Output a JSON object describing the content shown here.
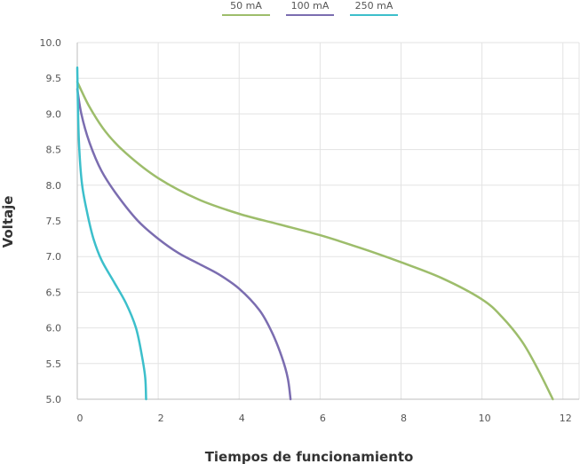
{
  "chart_data": {
    "type": "line",
    "xlabel": "Tiempos de funcionamiento",
    "ylabel": "Voltaje",
    "xlim": [
      0,
      12.4
    ],
    "ylim": [
      5.0,
      10.0
    ],
    "x_ticks": [
      "0",
      "2",
      "4",
      "6",
      "8",
      "10",
      "12"
    ],
    "y_ticks": [
      "5.0",
      "5.5",
      "6.0",
      "6.5",
      "7.0",
      "7.5",
      "8.0",
      "8.5",
      "9.0",
      "9.5",
      "10.0"
    ],
    "grid": true,
    "legend_position": "top-center",
    "series": [
      {
        "name": "50 mA",
        "color": "#9dbd6b",
        "points": [
          [
            0,
            9.45
          ],
          [
            0.3,
            9.1
          ],
          [
            0.7,
            8.75
          ],
          [
            1.2,
            8.45
          ],
          [
            2.0,
            8.1
          ],
          [
            3.0,
            7.8
          ],
          [
            4.0,
            7.6
          ],
          [
            5.0,
            7.45
          ],
          [
            6.0,
            7.3
          ],
          [
            7.0,
            7.12
          ],
          [
            8.0,
            6.92
          ],
          [
            9.0,
            6.7
          ],
          [
            10.0,
            6.4
          ],
          [
            10.5,
            6.15
          ],
          [
            11.0,
            5.8
          ],
          [
            11.4,
            5.4
          ],
          [
            11.75,
            5.0
          ]
        ]
      },
      {
        "name": "100 mA",
        "color": "#7b6db0",
        "points": [
          [
            0,
            9.35
          ],
          [
            0.1,
            9.0
          ],
          [
            0.3,
            8.6
          ],
          [
            0.6,
            8.2
          ],
          [
            1.0,
            7.85
          ],
          [
            1.5,
            7.5
          ],
          [
            2.0,
            7.25
          ],
          [
            2.5,
            7.05
          ],
          [
            3.0,
            6.9
          ],
          [
            3.5,
            6.75
          ],
          [
            4.0,
            6.55
          ],
          [
            4.5,
            6.25
          ],
          [
            4.8,
            5.95
          ],
          [
            5.05,
            5.6
          ],
          [
            5.2,
            5.3
          ],
          [
            5.27,
            5.0
          ]
        ]
      },
      {
        "name": "250 mA",
        "color": "#3cbfcb",
        "points": [
          [
            0,
            9.65
          ],
          [
            0.02,
            9.0
          ],
          [
            0.05,
            8.5
          ],
          [
            0.12,
            8.0
          ],
          [
            0.25,
            7.6
          ],
          [
            0.4,
            7.25
          ],
          [
            0.6,
            6.95
          ],
          [
            0.9,
            6.65
          ],
          [
            1.2,
            6.35
          ],
          [
            1.45,
            6.0
          ],
          [
            1.6,
            5.6
          ],
          [
            1.68,
            5.3
          ],
          [
            1.7,
            5.0
          ]
        ]
      }
    ]
  }
}
